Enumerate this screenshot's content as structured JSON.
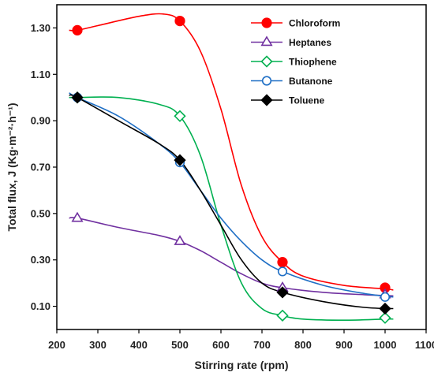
{
  "chart_data": {
    "type": "line",
    "title": "",
    "xlabel": "Stirring rate (rpm)",
    "ylabel": "Total flux, J (Kg·m⁻²·h⁻¹)",
    "xlim": [
      200,
      1100
    ],
    "ylim": [
      0.0,
      1.4
    ],
    "x_ticks": [
      200,
      300,
      400,
      500,
      600,
      700,
      800,
      900,
      1000,
      1100
    ],
    "y_ticks": [
      0.1,
      0.3,
      0.5,
      0.7,
      0.9,
      1.1,
      1.3
    ],
    "x_tick_labels": [
      "200",
      "300",
      "400",
      "500",
      "600",
      "700",
      "800",
      "900",
      "1000",
      "1100"
    ],
    "y_tick_labels": [
      "0.10",
      "0.30",
      "0.50",
      "0.70",
      "0.90",
      "1.10",
      "1.30"
    ],
    "legend_position": "top-right",
    "grid": false,
    "series": [
      {
        "name": "Chloroform",
        "color": "#ff0000",
        "marker": "filled-circle",
        "x": [
          250,
          500,
          750,
          1000
        ],
        "y": [
          1.29,
          1.33,
          0.29,
          0.18
        ],
        "curve": [
          [
            230,
            1.29
          ],
          [
            250,
            1.29
          ],
          [
            300,
            1.31
          ],
          [
            400,
            1.35
          ],
          [
            460,
            1.36
          ],
          [
            500,
            1.33
          ],
          [
            550,
            1.2
          ],
          [
            600,
            0.95
          ],
          [
            650,
            0.62
          ],
          [
            700,
            0.4
          ],
          [
            750,
            0.29
          ],
          [
            800,
            0.23
          ],
          [
            900,
            0.19
          ],
          [
            1000,
            0.175
          ],
          [
            1020,
            0.17
          ]
        ]
      },
      {
        "name": "Heptanes",
        "color": "#7030a0",
        "marker": "open-triangle",
        "x": [
          250,
          500,
          750,
          1000
        ],
        "y": [
          0.48,
          0.38,
          0.18,
          0.15
        ],
        "curve": [
          [
            230,
            0.48
          ],
          [
            250,
            0.48
          ],
          [
            350,
            0.44
          ],
          [
            450,
            0.405
          ],
          [
            500,
            0.38
          ],
          [
            550,
            0.34
          ],
          [
            600,
            0.29
          ],
          [
            650,
            0.24
          ],
          [
            700,
            0.2
          ],
          [
            750,
            0.18
          ],
          [
            850,
            0.16
          ],
          [
            950,
            0.15
          ],
          [
            1020,
            0.145
          ]
        ]
      },
      {
        "name": "Thiophene",
        "color": "#00b050",
        "marker": "open-diamond",
        "x": [
          250,
          500,
          750,
          1000
        ],
        "y": [
          1.0,
          0.92,
          0.06,
          0.05
        ],
        "curve": [
          [
            230,
            1.0
          ],
          [
            250,
            1.0
          ],
          [
            350,
            1.0
          ],
          [
            450,
            0.97
          ],
          [
            500,
            0.92
          ],
          [
            550,
            0.75
          ],
          [
            600,
            0.45
          ],
          [
            650,
            0.2
          ],
          [
            700,
            0.09
          ],
          [
            750,
            0.06
          ],
          [
            800,
            0.045
          ],
          [
            900,
            0.04
          ],
          [
            1000,
            0.045
          ],
          [
            1020,
            0.045
          ]
        ]
      },
      {
        "name": "Butanone",
        "color": "#1f6fc5",
        "marker": "open-circle",
        "x": [
          250,
          500,
          750,
          1000
        ],
        "y": [
          1.0,
          0.72,
          0.25,
          0.14
        ],
        "curve": [
          [
            230,
            1.02
          ],
          [
            250,
            1.0
          ],
          [
            350,
            0.92
          ],
          [
            450,
            0.8
          ],
          [
            500,
            0.72
          ],
          [
            550,
            0.6
          ],
          [
            600,
            0.48
          ],
          [
            650,
            0.38
          ],
          [
            700,
            0.3
          ],
          [
            750,
            0.25
          ],
          [
            850,
            0.19
          ],
          [
            950,
            0.155
          ],
          [
            1020,
            0.14
          ]
        ]
      },
      {
        "name": "Toluene",
        "color": "#000000",
        "marker": "filled-diamond",
        "x": [
          250,
          500,
          750,
          1000
        ],
        "y": [
          1.0,
          0.73,
          0.16,
          0.09
        ],
        "curve": [
          [
            230,
            1.01
          ],
          [
            250,
            1.0
          ],
          [
            350,
            0.9
          ],
          [
            450,
            0.8
          ],
          [
            500,
            0.73
          ],
          [
            550,
            0.6
          ],
          [
            600,
            0.45
          ],
          [
            650,
            0.3
          ],
          [
            700,
            0.2
          ],
          [
            750,
            0.16
          ],
          [
            850,
            0.12
          ],
          [
            950,
            0.095
          ],
          [
            1020,
            0.09
          ]
        ]
      }
    ]
  }
}
